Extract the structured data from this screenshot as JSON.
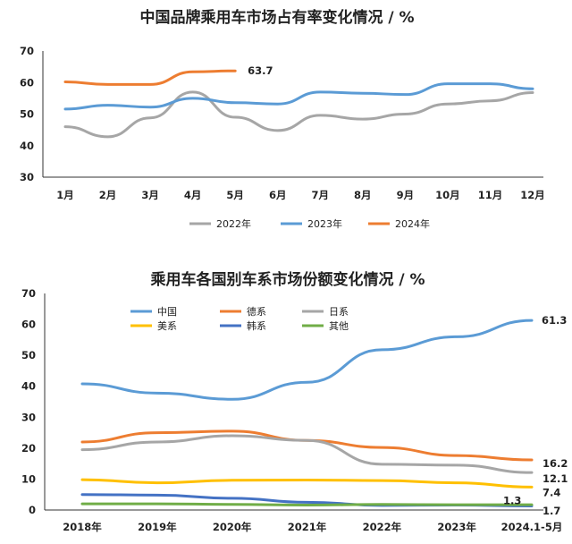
{
  "chart_data": [
    {
      "type": "line",
      "title": "中国品牌乘用车市场占有率变化情况 / %",
      "categories": [
        "1月",
        "2月",
        "3月",
        "4月",
        "5月",
        "6月",
        "7月",
        "8月",
        "9月",
        "10月",
        "11月",
        "12月"
      ],
      "ylim": [
        30,
        70
      ],
      "yticks": [
        "30",
        "40",
        "50",
        "60",
        "70"
      ],
      "grid": false,
      "legend_position": "bottom",
      "series": [
        {
          "name": "2022年",
          "color": "#a6a6a6",
          "values": [
            46,
            42.8,
            48.8,
            57,
            49,
            44.8,
            49.6,
            48.4,
            50,
            53.2,
            54.2,
            56.8
          ]
        },
        {
          "name": "2023年",
          "color": "#5b9bd5",
          "values": [
            51.6,
            52.8,
            52.2,
            55,
            53.6,
            53.2,
            57,
            56.6,
            56.2,
            59.6,
            59.6,
            58
          ]
        },
        {
          "name": "2024年",
          "color": "#ed7d31",
          "values": [
            60.2,
            59.4,
            59.4,
            63.4,
            63.7,
            null,
            null,
            null,
            null,
            null,
            null,
            null
          ]
        }
      ],
      "annotations": [
        {
          "text": "63.7",
          "series": "2024年",
          "index": 4
        }
      ]
    },
    {
      "type": "line",
      "title": "乘用车各国别车系市场份额变化情况 / %",
      "categories": [
        "2018年",
        "2019年",
        "2020年",
        "2021年",
        "2022年",
        "2023年",
        "2024.1-5月"
      ],
      "ylim": [
        0,
        70
      ],
      "yticks": [
        "0",
        "10",
        "20",
        "30",
        "40",
        "50",
        "60",
        "70"
      ],
      "grid": false,
      "legend_position": "top-left",
      "series": [
        {
          "name": "中国",
          "color": "#5b9bd5",
          "values": [
            40.8,
            37.8,
            35.8,
            41.3,
            51.8,
            56,
            61.3
          ]
        },
        {
          "name": "德系",
          "color": "#ed7d31",
          "values": [
            22,
            25,
            25.5,
            22.5,
            20.2,
            17.6,
            16.2
          ]
        },
        {
          "name": "日系",
          "color": "#a6a6a6",
          "values": [
            19.5,
            22,
            24,
            22.5,
            14.8,
            14.5,
            12.1
          ]
        },
        {
          "name": "美系",
          "color": "#ffc000",
          "values": [
            9.8,
            8.8,
            9.6,
            9.7,
            9.5,
            8.8,
            7.4
          ]
        },
        {
          "name": "韩系",
          "color": "#4472c4",
          "values": [
            5,
            4.8,
            3.8,
            2.5,
            1.5,
            1.6,
            1.3
          ]
        },
        {
          "name": "其他",
          "color": "#70ad47",
          "values": [
            2,
            2,
            1.8,
            1.6,
            1.8,
            1.7,
            1.7
          ]
        }
      ],
      "annotations": [
        {
          "text": "61.3",
          "series": "中国",
          "index": 6
        },
        {
          "text": "16.2",
          "series": "德系",
          "index": 6
        },
        {
          "text": "12.1",
          "series": "日系",
          "index": 6
        },
        {
          "text": "7.4",
          "series": "美系",
          "index": 6
        },
        {
          "text": "1.3",
          "series": "韩系",
          "index": 6
        },
        {
          "text": "1.7",
          "series": "其他",
          "index": 6
        }
      ]
    }
  ]
}
